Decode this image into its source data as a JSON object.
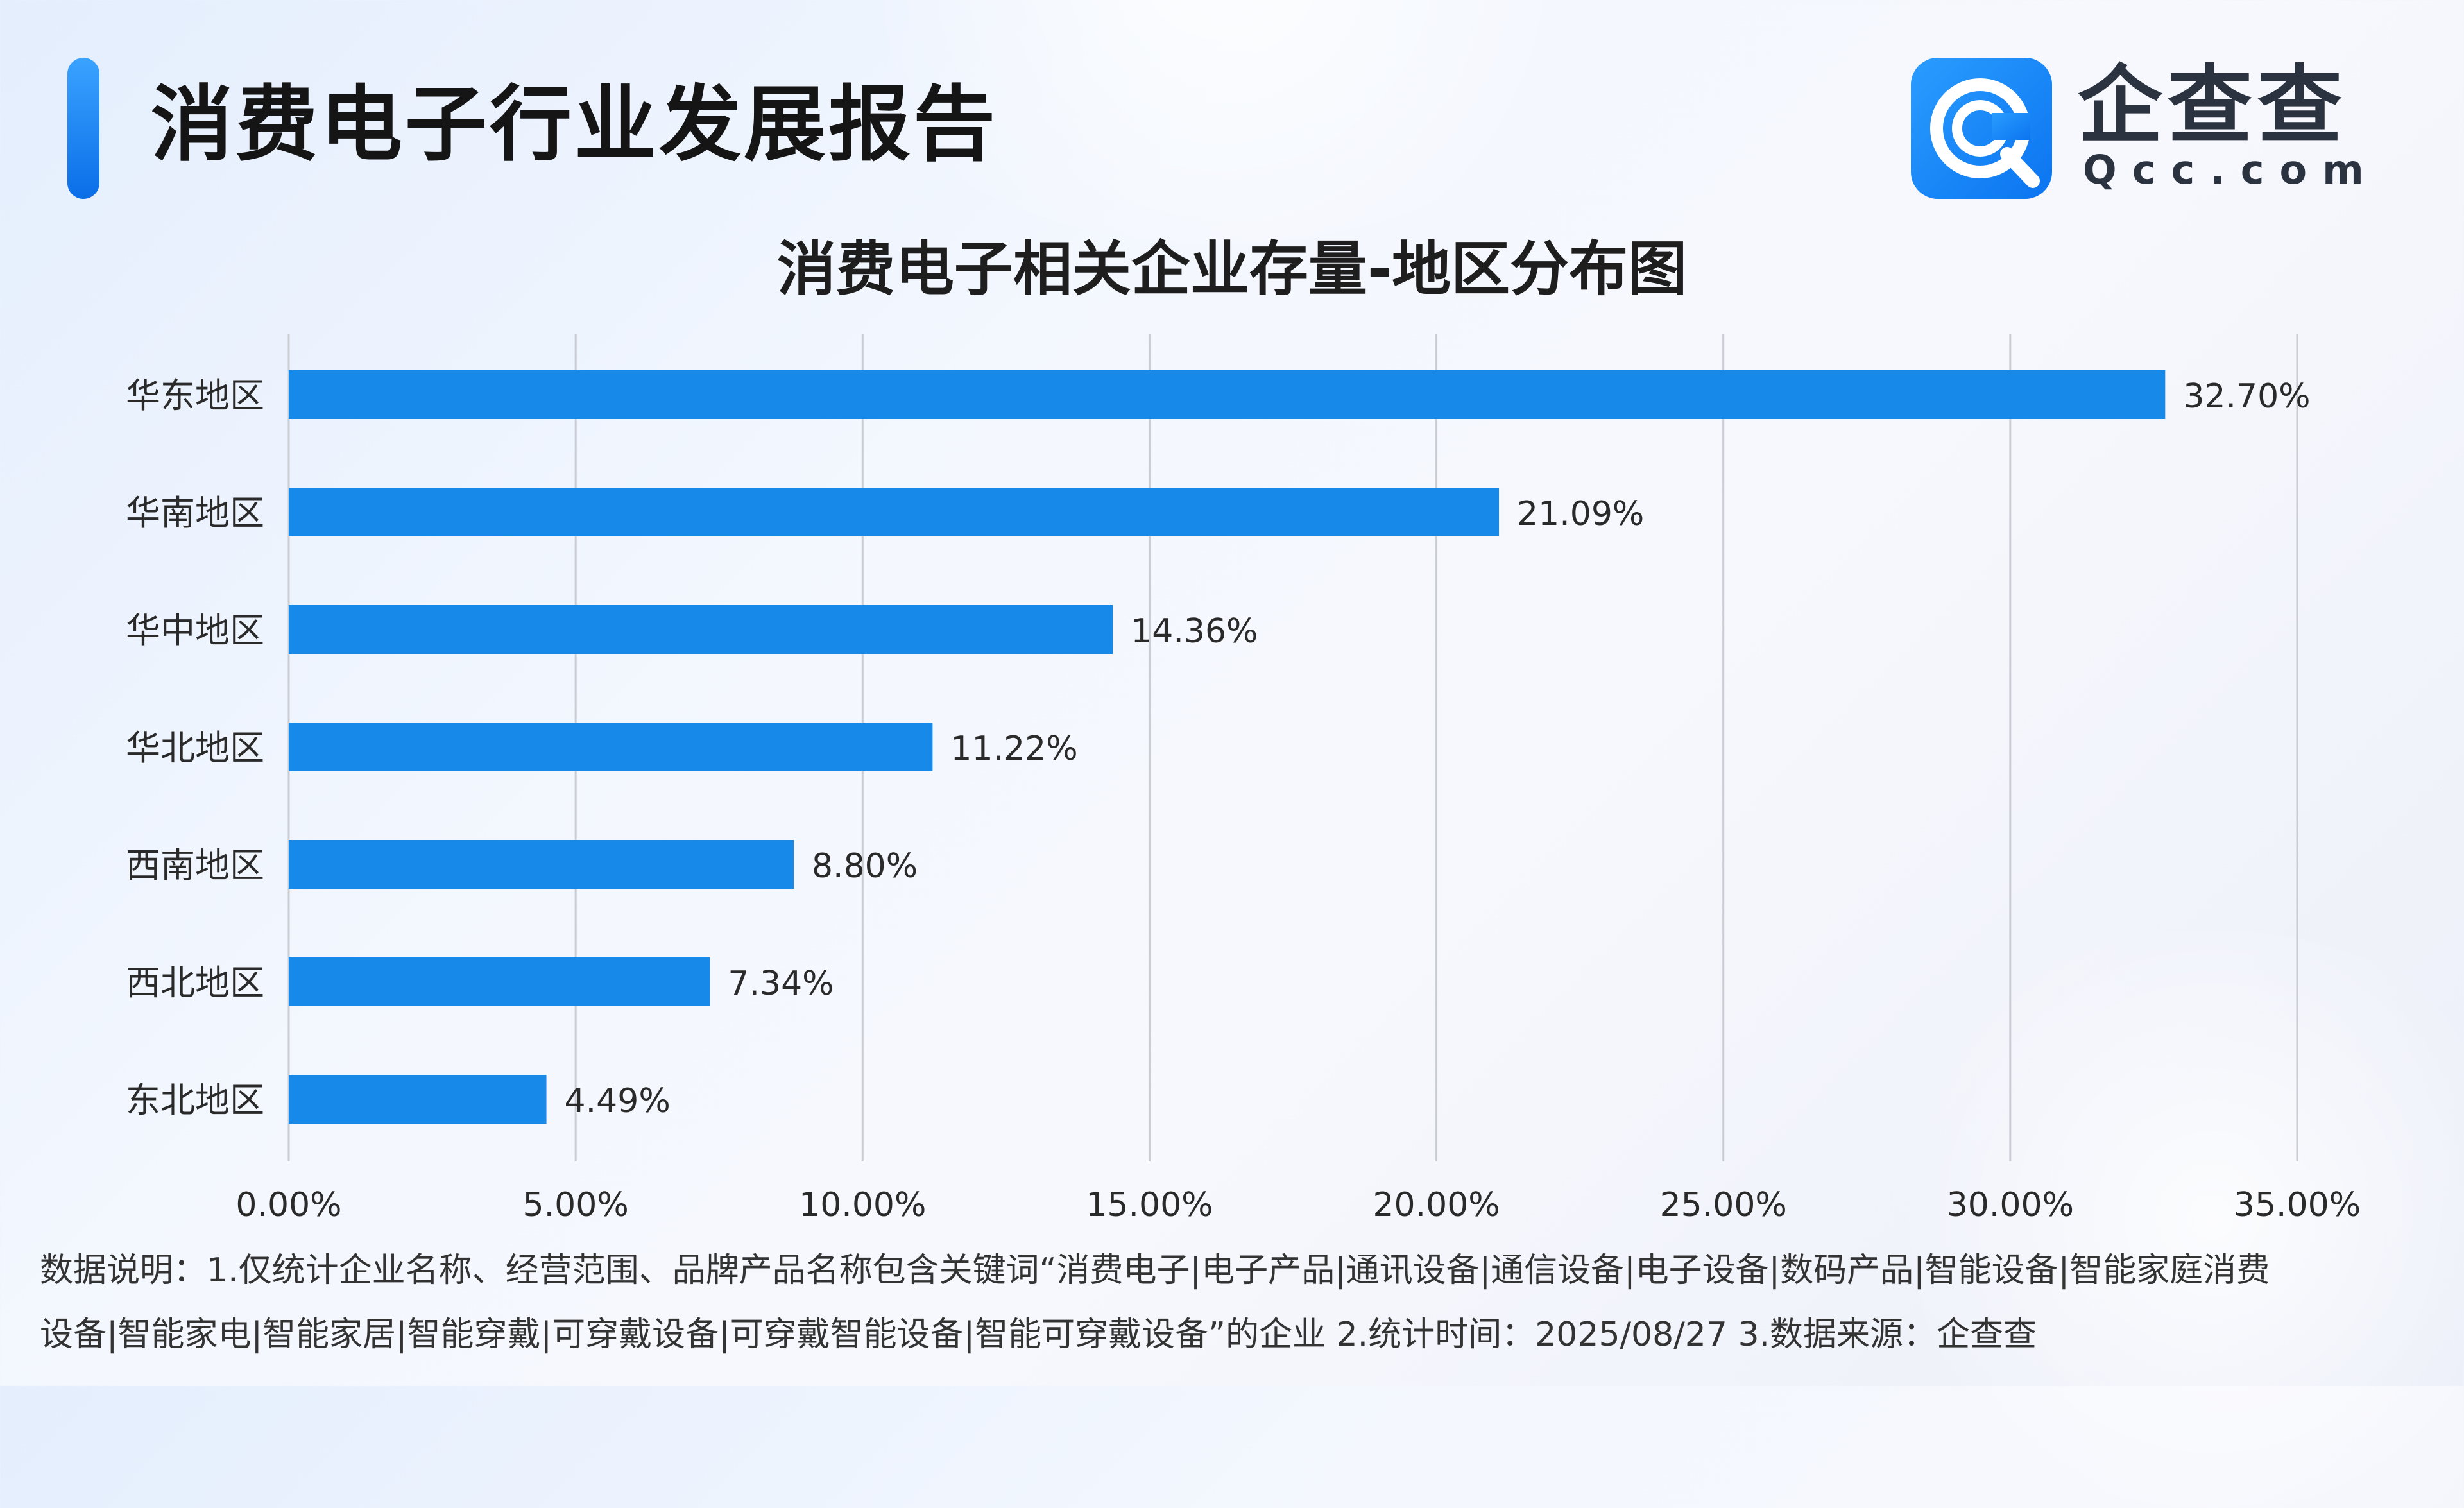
{
  "header": {
    "title": "消费电子行业发展报告",
    "logo_text": "企查查",
    "logo_sub": "Qcc.com"
  },
  "colors": {
    "accent": "#0a6ee8",
    "bar": "#1789e8",
    "grid": "#c9ccd3",
    "logo_blue": "#1a8cff"
  },
  "icons": {
    "logo": "qcc-logo-icon"
  },
  "chart_data": {
    "type": "bar",
    "orientation": "horizontal",
    "title": "消费电子相关企业存量-地区分布图",
    "categories": [
      "华东地区",
      "华南地区",
      "华中地区",
      "华北地区",
      "西南地区",
      "西北地区",
      "东北地区"
    ],
    "values": [
      32.7,
      21.09,
      14.36,
      11.22,
      8.8,
      7.34,
      4.49
    ],
    "value_labels": [
      "32.70%",
      "21.09%",
      "14.36%",
      "11.22%",
      "8.80%",
      "7.34%",
      "4.49%"
    ],
    "xlim": [
      0,
      35
    ],
    "xticks": [
      0,
      5,
      10,
      15,
      20,
      25,
      30,
      35
    ],
    "xtick_labels": [
      "0.00%",
      "5.00%",
      "10.00%",
      "15.00%",
      "20.00%",
      "25.00%",
      "30.00%",
      "35.00%"
    ],
    "grid": "vertical",
    "legend": "none"
  },
  "footnote": {
    "line1": "数据说明：1.仅统计企业名称、经营范围、品牌产品名称包含关键词“消费电子|电子产品|通讯设备|通信设备|电子设备|数码产品|智能设备|智能家庭消费",
    "line2": "设备|智能家电|智能家居|智能穿戴|可穿戴设备|可穿戴智能设备|智能可穿戴设备”的企业   2.统计时间：2025/08/27    3.数据来源：企查查"
  }
}
